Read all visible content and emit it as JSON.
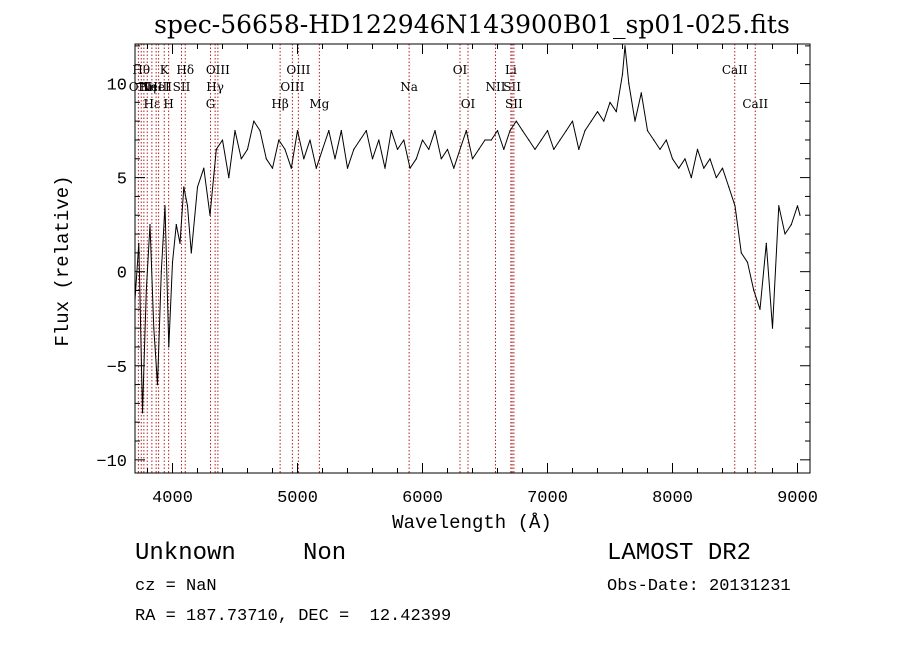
{
  "chart_data": {
    "type": "line",
    "title": "spec-56658-HD122946N143900B01_sp01-025.fits",
    "xlabel": "Wavelength (Å)",
    "ylabel": "Flux (relative)",
    "xlim": [
      3700,
      9100
    ],
    "ylim": [
      -10.7,
      12.1
    ],
    "x_ticks": [
      4000,
      5000,
      6000,
      7000,
      8000,
      9000
    ],
    "x_tick_labels": [
      "4000",
      "5000",
      "6000",
      "7000",
      "8000",
      "9000"
    ],
    "y_ticks": [
      -10,
      -5,
      0,
      5,
      10
    ],
    "y_tick_labels": [
      "−10",
      "−5",
      "0",
      "5",
      "10"
    ],
    "grid": false,
    "series": [
      {
        "color": "#000000",
        "x": [
          3700,
          3730,
          3760,
          3790,
          3820,
          3850,
          3880,
          3910,
          3940,
          3970,
          4000,
          4030,
          4060,
          4090,
          4120,
          4150,
          4200,
          4250,
          4300,
          4350,
          4400,
          4450,
          4500,
          4550,
          4600,
          4650,
          4700,
          4750,
          4800,
          4850,
          4900,
          4950,
          5000,
          5050,
          5100,
          5150,
          5200,
          5250,
          5300,
          5350,
          5400,
          5450,
          5500,
          5550,
          5600,
          5650,
          5700,
          5750,
          5800,
          5850,
          5900,
          5950,
          6000,
          6050,
          6100,
          6150,
          6200,
          6250,
          6300,
          6350,
          6400,
          6450,
          6500,
          6550,
          6600,
          6650,
          6700,
          6750,
          6800,
          6850,
          6900,
          6950,
          7000,
          7050,
          7100,
          7150,
          7200,
          7250,
          7300,
          7350,
          7400,
          7450,
          7500,
          7550,
          7600,
          7620,
          7650,
          7700,
          7750,
          7800,
          7850,
          7900,
          7950,
          8000,
          8050,
          8100,
          8150,
          8200,
          8250,
          8300,
          8350,
          8400,
          8450,
          8500,
          8550,
          8600,
          8650,
          8700,
          8750,
          8800,
          8850,
          8900,
          8950,
          9000,
          9020
        ],
        "y": [
          -1.5,
          1.5,
          -7.5,
          -1,
          2.5,
          -3,
          -6,
          0,
          3.5,
          -4,
          0.5,
          2.5,
          1.5,
          4.5,
          3.5,
          1,
          4.5,
          5.5,
          3,
          6.5,
          7,
          5,
          7.5,
          6,
          6.5,
          8,
          7.5,
          6,
          5.5,
          7,
          6.5,
          5.5,
          7.5,
          6,
          7,
          5.5,
          6.5,
          7.5,
          6,
          7.5,
          5.5,
          6.5,
          7,
          7.5,
          6,
          7,
          5.5,
          7.5,
          6.5,
          7,
          5.5,
          6,
          7,
          6.5,
          7.5,
          6,
          6.5,
          5.5,
          6.5,
          7.5,
          6,
          6.5,
          7,
          7,
          7.5,
          6.5,
          7.5,
          8,
          7.5,
          7,
          6.5,
          7,
          7.5,
          6.5,
          7,
          7.5,
          8,
          6.5,
          7.5,
          8,
          8.5,
          8,
          9,
          8.5,
          10.5,
          12,
          10,
          8,
          9.5,
          7.5,
          7,
          6.5,
          7,
          6,
          5.5,
          6,
          5,
          6.5,
          5.5,
          6,
          5,
          5.5,
          4.5,
          3.5,
          1,
          0.5,
          -1,
          -2,
          1.5,
          -3,
          3.5,
          2,
          2.5,
          3.5,
          3
        ]
      }
    ],
    "lines": [
      {
        "x": 3727,
        "label": "OII",
        "row": 2
      },
      {
        "x": 3750,
        "label": "Hθ",
        "row": 1
      },
      {
        "x": 3771,
        "label": "",
        "row": 0
      },
      {
        "x": 3798,
        "label": "Hη",
        "row": 2
      },
      {
        "x": 3835,
        "label": "Hε",
        "row": 3
      },
      {
        "x": 3869,
        "label": "NeIII",
        "row": 2
      },
      {
        "x": 3889,
        "label": "HeI",
        "row": 2
      },
      {
        "x": 3934,
        "label": "K",
        "row": 1
      },
      {
        "x": 3969,
        "label": "H",
        "row": 3
      },
      {
        "x": 4072,
        "label": "SII",
        "row": 2
      },
      {
        "x": 4102,
        "label": "Hδ",
        "row": 1
      },
      {
        "x": 4304,
        "label": "G",
        "row": 3
      },
      {
        "x": 4341,
        "label": "Hγ",
        "row": 2
      },
      {
        "x": 4363,
        "label": "OIII",
        "row": 1
      },
      {
        "x": 4861,
        "label": "Hβ",
        "row": 3
      },
      {
        "x": 4959,
        "label": "OIII",
        "row": 2
      },
      {
        "x": 5007,
        "label": "OIII",
        "row": 1
      },
      {
        "x": 5175,
        "label": "Mg",
        "row": 3
      },
      {
        "x": 5893,
        "label": "Na",
        "row": 2
      },
      {
        "x": 6300,
        "label": "OI",
        "row": 1
      },
      {
        "x": 6364,
        "label": "OI",
        "row": 3
      },
      {
        "x": 6584,
        "label": "NII",
        "row": 2
      },
      {
        "x": 6707,
        "label": "Li",
        "row": 1
      },
      {
        "x": 6717,
        "label": "SII",
        "row": 2
      },
      {
        "x": 6731,
        "label": "SII",
        "row": 3
      },
      {
        "x": 8498,
        "label": "CaII",
        "row": 1
      },
      {
        "x": 8662,
        "label": "CaII",
        "row": 3
      }
    ]
  },
  "footer": {
    "object_class": "Unknown",
    "object_subclass": "Non",
    "survey": "LAMOST DR2",
    "cz": "cz = NaN",
    "obs_date": "Obs-Date: 20131231",
    "coords": "RA = 187.73710, DEC =  12.42399"
  },
  "colors": {
    "spectrum": "#000000",
    "line_markers": "#b22222",
    "axes": "#000000",
    "background": "#ffffff"
  }
}
